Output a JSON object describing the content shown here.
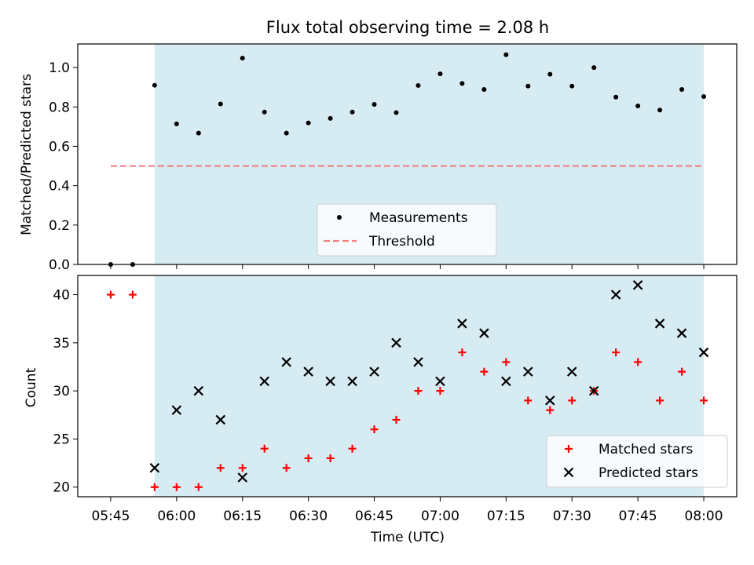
{
  "chart_data": {
    "title": "Flux total observing time = 2.08 h",
    "xlabel": "Time (UTC)",
    "x_ticks": [
      "05:45",
      "06:00",
      "06:15",
      "06:30",
      "06:45",
      "07:00",
      "07:15",
      "07:30",
      "07:45",
      "08:00"
    ],
    "x_tick_minutes": [
      345,
      360,
      375,
      390,
      405,
      420,
      435,
      450,
      465,
      480
    ],
    "xlim_minutes": [
      337.5,
      487.5
    ],
    "shaded_interval_minutes": [
      355,
      480
    ],
    "shade_color": "#add8e6",
    "panels": [
      {
        "type": "scatter",
        "ylabel": "Matched/Predicted stars",
        "ylim": [
          0.0,
          1.12
        ],
        "y_ticks": [
          "0.0",
          "0.2",
          "0.4",
          "0.6",
          "0.8",
          "1.0"
        ],
        "y_tick_values": [
          0.0,
          0.2,
          0.4,
          0.6,
          0.8,
          1.0
        ],
        "series": [
          {
            "name": "Measurements",
            "marker": "dot",
            "color": "#000000",
            "x_minutes": [
              345,
              350,
              355,
              360,
              365,
              370,
              375,
              380,
              385,
              390,
              395,
              400,
              405,
              410,
              415,
              420,
              425,
              430,
              435,
              440,
              445,
              450,
              455,
              460,
              465,
              470,
              475,
              480
            ],
            "y": [
              0.0,
              0.0,
              0.91,
              0.714,
              0.667,
              0.815,
              1.048,
              0.774,
              0.667,
              0.719,
              0.742,
              0.774,
              0.813,
              0.771,
              0.909,
              0.968,
              0.919,
              0.889,
              1.065,
              0.906,
              0.966,
              0.906,
              1.0,
              0.85,
              0.805,
              0.784,
              0.889,
              0.853
            ]
          },
          {
            "name": "Threshold",
            "marker": "dashed-line",
            "color": "#f08080",
            "x_minutes": [
              345,
              480
            ],
            "y": [
              0.5,
              0.5
            ]
          }
        ],
        "legend_position": "lower center"
      },
      {
        "type": "scatter",
        "ylabel": "Count",
        "ylim": [
          19.0,
          42.0
        ],
        "y_ticks": [
          "20",
          "25",
          "30",
          "35",
          "40"
        ],
        "y_tick_values": [
          20,
          25,
          30,
          35,
          40
        ],
        "series": [
          {
            "name": "Matched stars",
            "marker": "plus",
            "color": "#ff0000",
            "x_minutes": [
              345,
              350,
              355,
              360,
              365,
              370,
              375,
              380,
              385,
              390,
              395,
              400,
              405,
              410,
              415,
              420,
              425,
              430,
              435,
              440,
              445,
              450,
              455,
              460,
              465,
              470,
              475,
              480
            ],
            "y": [
              40,
              40,
              20,
              20,
              20,
              22,
              22,
              24,
              22,
              23,
              23,
              24,
              26,
              27,
              30,
              30,
              34,
              32,
              33,
              29,
              28,
              29,
              30,
              34,
              33,
              29,
              32,
              29
            ]
          },
          {
            "name": "Predicted stars",
            "marker": "x",
            "color": "#000000",
            "x_minutes": [
              355,
              360,
              365,
              370,
              375,
              380,
              385,
              390,
              395,
              400,
              405,
              410,
              415,
              420,
              425,
              430,
              435,
              440,
              445,
              450,
              455,
              460,
              465,
              470,
              475,
              480
            ],
            "y": [
              22,
              28,
              30,
              27,
              21,
              31,
              33,
              32,
              31,
              31,
              32,
              35,
              33,
              31,
              37,
              36,
              31,
              32,
              29,
              32,
              30,
              40,
              41,
              37,
              36,
              34
            ]
          }
        ],
        "legend_position": "lower right"
      }
    ]
  }
}
